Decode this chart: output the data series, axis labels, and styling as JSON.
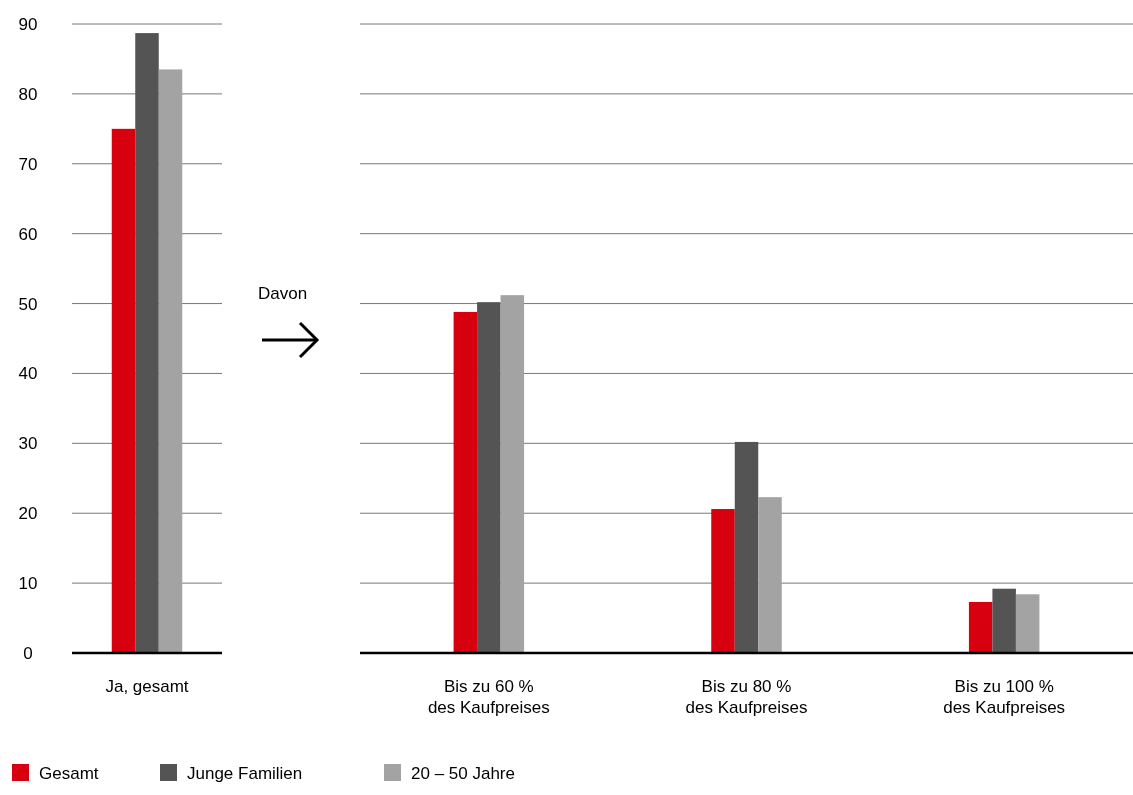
{
  "chart_data": [
    {
      "type": "bar",
      "categories": [
        "Ja, gesamt"
      ],
      "series": [
        {
          "name": "Gesamt",
          "color": "#d6000f",
          "values": [
            75.0
          ]
        },
        {
          "name": "Junge Familien",
          "color": "#545454",
          "values": [
            88.7
          ]
        },
        {
          "name": "20 – 50 Jahre",
          "color": "#a3a3a3",
          "values": [
            83.5
          ]
        }
      ],
      "ylim": [
        0,
        90
      ],
      "yticks": [
        0,
        10,
        20,
        30,
        40,
        50,
        60,
        70,
        80,
        90
      ],
      "grid": "y",
      "legend": "bottom"
    },
    {
      "type": "bar",
      "categories": [
        "Bis zu 60 % des Kaufpreises",
        "Bis zu 80 % des Kaufpreises",
        "Bis zu 100 % des Kaufpreises"
      ],
      "series": [
        {
          "color": "#d6000f",
          "values": [
            48.8,
            20.6,
            7.3
          ]
        },
        {
          "color": "#545454",
          "values": [
            50.2,
            30.2,
            9.2
          ]
        },
        {
          "color": "#a3a3a3",
          "values": [
            51.2,
            22.3,
            8.4
          ]
        }
      ],
      "ylim": [
        0,
        90
      ],
      "yticks": [
        0,
        10,
        20,
        30,
        40,
        50,
        60,
        70,
        80,
        90
      ],
      "grid": "y",
      "tick_labels": "x",
      "annotations": [
        "Davon"
      ]
    }
  ]
}
